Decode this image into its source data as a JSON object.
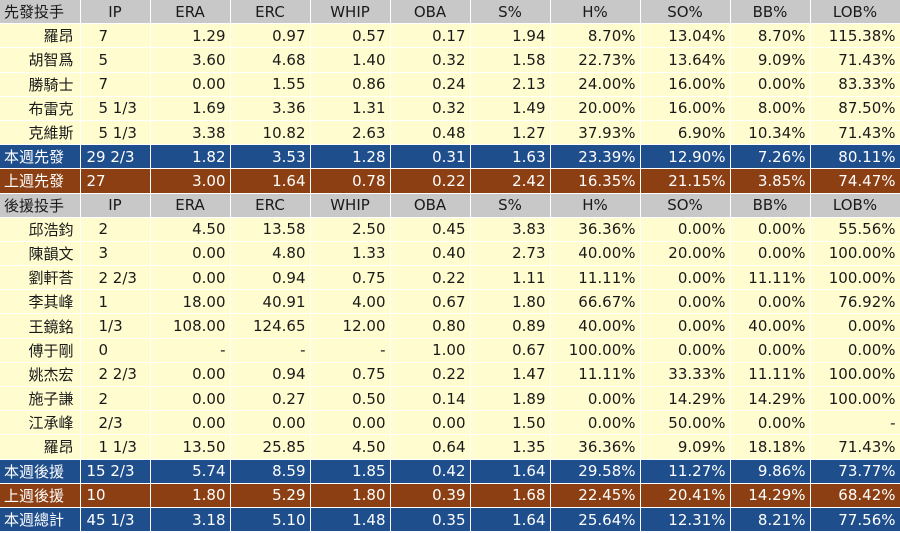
{
  "columns": [
    "IP",
    "ERA",
    "ERC",
    "WHIP",
    "OBA",
    "S%",
    "H%",
    "SO%",
    "BB%",
    "LOB%"
  ],
  "starters": {
    "header": "先發投手",
    "rows": [
      [
        "羅昂",
        "7",
        "1.29",
        "0.97",
        "0.57",
        "0.17",
        "1.94",
        "8.70%",
        "13.04%",
        "8.70%",
        "115.38%"
      ],
      [
        "胡智爲",
        "5",
        "3.60",
        "4.68",
        "1.40",
        "0.32",
        "1.58",
        "22.73%",
        "13.64%",
        "9.09%",
        "71.43%"
      ],
      [
        "勝騎士",
        "7",
        "0.00",
        "1.55",
        "0.86",
        "0.24",
        "2.13",
        "24.00%",
        "16.00%",
        "0.00%",
        "83.33%"
      ],
      [
        "布雷克",
        "5 1/3",
        "1.69",
        "3.36",
        "1.31",
        "0.32",
        "1.49",
        "20.00%",
        "16.00%",
        "8.00%",
        "87.50%"
      ],
      [
        "克維斯",
        "5 1/3",
        "3.38",
        "10.82",
        "2.63",
        "0.48",
        "1.27",
        "37.93%",
        "6.90%",
        "10.34%",
        "71.43%"
      ]
    ],
    "this_week": [
      "本週先發",
      "29 2/3",
      "1.82",
      "3.53",
      "1.28",
      "0.31",
      "1.63",
      "23.39%",
      "12.90%",
      "7.26%",
      "80.11%"
    ],
    "last_week": [
      "上週先發",
      "27",
      "3.00",
      "1.64",
      "0.78",
      "0.22",
      "2.42",
      "16.35%",
      "21.15%",
      "3.85%",
      "74.47%"
    ]
  },
  "relievers": {
    "header": "後援投手",
    "rows": [
      [
        "邱浩鈞",
        "2",
        "4.50",
        "13.58",
        "2.50",
        "0.45",
        "3.83",
        "36.36%",
        "0.00%",
        "0.00%",
        "55.56%"
      ],
      [
        "陳韻文",
        "3",
        "0.00",
        "4.80",
        "1.33",
        "0.40",
        "2.73",
        "40.00%",
        "20.00%",
        "0.00%",
        "100.00%"
      ],
      [
        "劉軒荅",
        "2 2/3",
        "0.00",
        "0.94",
        "0.75",
        "0.22",
        "1.11",
        "11.11%",
        "0.00%",
        "11.11%",
        "100.00%"
      ],
      [
        "李其峰",
        "1",
        "18.00",
        "40.91",
        "4.00",
        "0.67",
        "1.80",
        "66.67%",
        "0.00%",
        "0.00%",
        "76.92%"
      ],
      [
        "王鏡銘",
        "1/3",
        "108.00",
        "124.65",
        "12.00",
        "0.80",
        "0.89",
        "40.00%",
        "0.00%",
        "40.00%",
        "0.00%"
      ],
      [
        "傅于剛",
        "0",
        "-",
        "-",
        "-",
        "1.00",
        "0.67",
        "100.00%",
        "0.00%",
        "0.00%",
        "0.00%"
      ],
      [
        "姚杰宏",
        "2 2/3",
        "0.00",
        "0.94",
        "0.75",
        "0.22",
        "1.47",
        "11.11%",
        "33.33%",
        "11.11%",
        "100.00%"
      ],
      [
        "施子謙",
        "2",
        "0.00",
        "0.27",
        "0.50",
        "0.14",
        "1.89",
        "0.00%",
        "14.29%",
        "14.29%",
        "100.00%"
      ],
      [
        "江承峰",
        "2/3",
        "0.00",
        "0.00",
        "0.00",
        "0.00",
        "1.50",
        "0.00%",
        "50.00%",
        "0.00%",
        "-"
      ],
      [
        "羅昂",
        "1 1/3",
        "13.50",
        "25.85",
        "4.50",
        "0.64",
        "1.35",
        "36.36%",
        "9.09%",
        "18.18%",
        "71.43%"
      ]
    ],
    "this_week": [
      "本週後援",
      "15 2/3",
      "5.74",
      "8.59",
      "1.85",
      "0.42",
      "1.64",
      "29.58%",
      "11.27%",
      "9.86%",
      "73.77%"
    ],
    "last_week": [
      "上週後援",
      "10",
      "1.80",
      "5.29",
      "1.80",
      "0.39",
      "1.68",
      "22.45%",
      "20.41%",
      "14.29%",
      "68.42%"
    ]
  },
  "total": [
    "本週總計",
    "45 1/3",
    "3.18",
    "5.10",
    "1.48",
    "0.35",
    "1.64",
    "25.64%",
    "12.31%",
    "8.21%",
    "77.56%"
  ],
  "colors": {
    "header_bg": "#c8c8c8",
    "data_bg": "#fffdd0",
    "this_week_bg": "#1f4e8c",
    "last_week_bg": "#8b3f12"
  }
}
